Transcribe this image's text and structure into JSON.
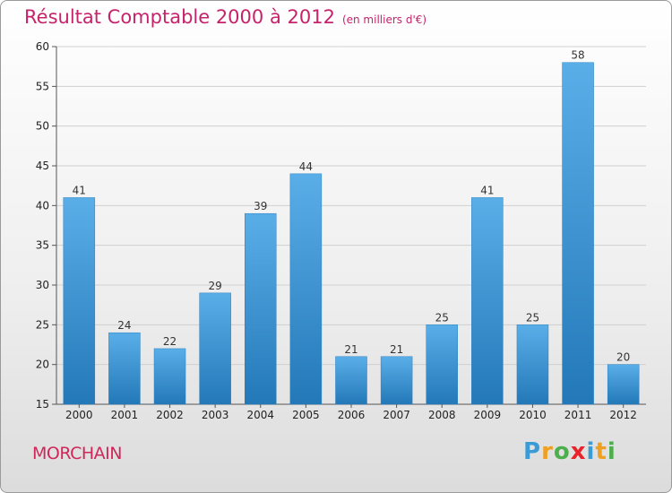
{
  "header": {
    "title": "Résultat Comptable 2000 à 2012",
    "unit": "(en milliers d'€)"
  },
  "footer": {
    "commune": "MORCHAIN",
    "logo_letters": [
      "P",
      "r",
      "o",
      "x",
      "i",
      "t",
      "i"
    ],
    "logo_colors": [
      "#3a9bd5",
      "#f0a020",
      "#4bb04b",
      "#e8232a",
      "#3a9bd5",
      "#f0a020",
      "#4bb04b"
    ]
  },
  "chart_data": {
    "type": "bar",
    "title": "Résultat Comptable 2000 à 2012",
    "subtitle": "(en milliers d'€)",
    "categories": [
      "2000",
      "2001",
      "2002",
      "2003",
      "2004",
      "2005",
      "2006",
      "2007",
      "2008",
      "2009",
      "2010",
      "2011",
      "2012"
    ],
    "values": [
      41,
      24,
      22,
      29,
      39,
      44,
      21,
      21,
      25,
      41,
      25,
      58,
      20
    ],
    "ylim": [
      15,
      60
    ],
    "yticks": [
      15,
      20,
      25,
      30,
      35,
      40,
      45,
      50,
      55,
      60
    ],
    "grid": true,
    "bar_color": "#4a9ad8",
    "xlabel": "",
    "ylabel": ""
  }
}
